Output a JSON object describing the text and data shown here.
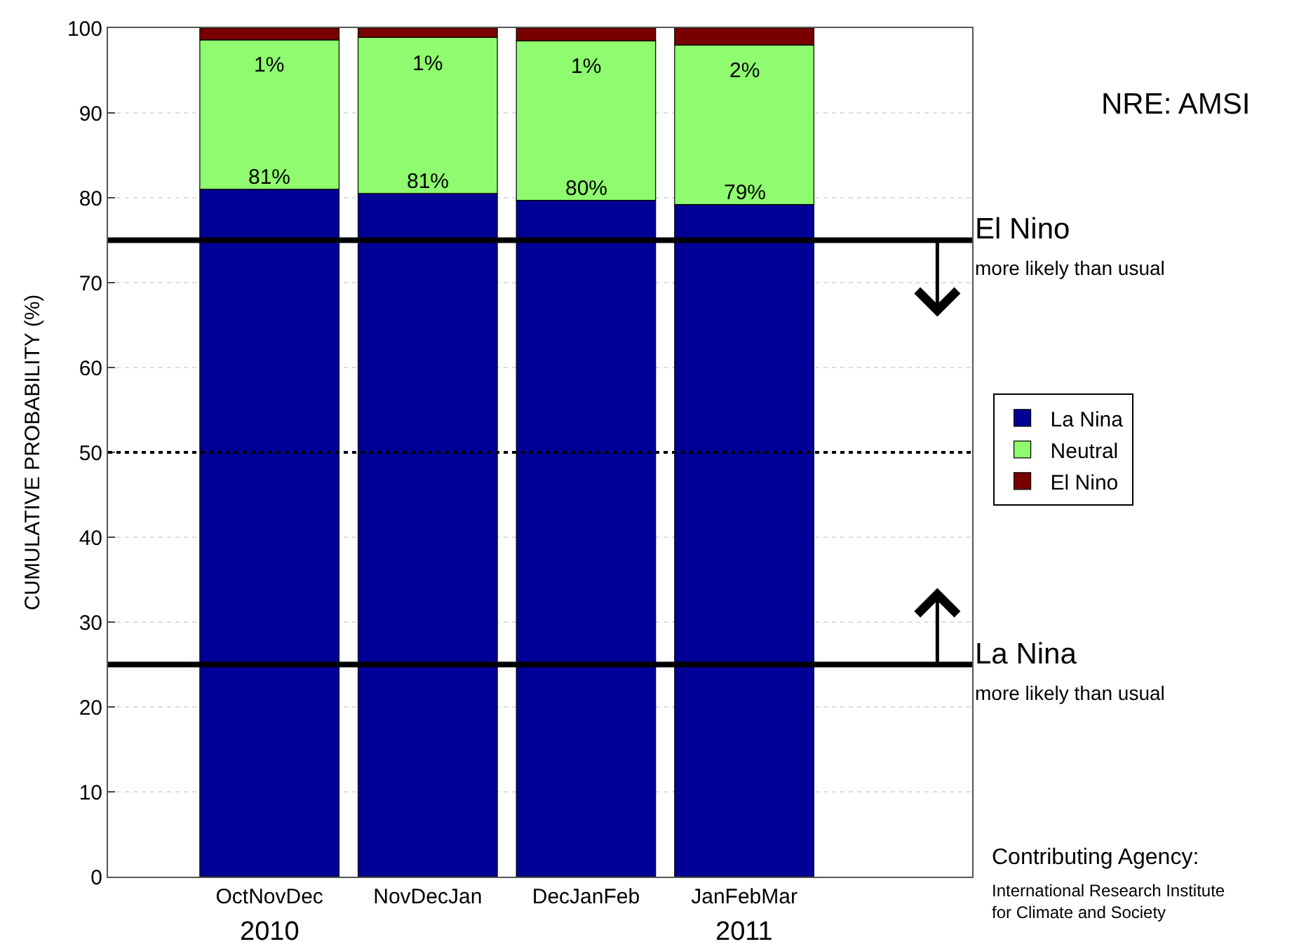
{
  "chart_data": {
    "type": "bar",
    "stacked": true,
    "ylabel": "CUMULATIVE PROBABILITY (%)",
    "categories": [
      "OctNovDec",
      "NovDecJan",
      "DecJanFeb",
      "JanFebMar"
    ],
    "series": [
      {
        "name": "La Nina",
        "color": "#000096",
        "values": [
          81,
          80.5,
          79.7,
          79.2
        ],
        "value_labels": [
          "81%",
          "81%",
          "80%",
          "79%"
        ]
      },
      {
        "name": "Neutral",
        "color": "#8ffb6f",
        "values": [
          17.6,
          18.4,
          18.8,
          18.8
        ]
      },
      {
        "name": "El Nino",
        "color": "#7a0000",
        "values": [
          1.4,
          1.1,
          1.5,
          2.0
        ],
        "value_labels": [
          "1%",
          "1%",
          "1%",
          "2%"
        ]
      }
    ],
    "ylim": [
      0,
      100
    ],
    "yticks": [
      0,
      10,
      20,
      30,
      40,
      50,
      60,
      70,
      80,
      90,
      100
    ],
    "grid": "y",
    "legend": "right",
    "ref_lines": [
      {
        "axis": "y",
        "value": 75,
        "label": "El Nino",
        "color": "#000000",
        "line_style": "solid"
      },
      {
        "axis": "y",
        "value": 50,
        "label": null,
        "color": "#000000",
        "line_style": "dotted"
      },
      {
        "axis": "y",
        "value": 25,
        "label": "La Nina",
        "color": "#000000",
        "line_style": "solid"
      }
    ],
    "annotations": [
      "more likely than usual",
      "more likely than usual",
      "2010",
      "2011",
      "NRE: AMSI",
      "Contributing Agency:",
      "International Research Institute\nfor Climate and Society"
    ]
  }
}
